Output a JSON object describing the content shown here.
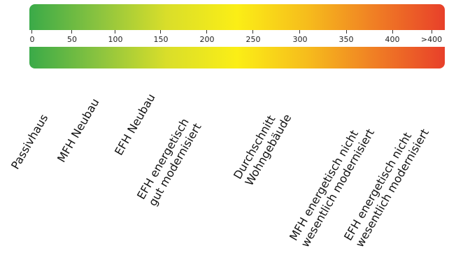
{
  "scale": {
    "ticks": [
      "0",
      "50",
      "100",
      "150",
      "200",
      "250",
      "300",
      "350",
      "400",
      ">400"
    ],
    "gradient_colors": [
      "#3aaa48",
      "#8cc43f",
      "#d9de2a",
      "#fbee16",
      "#f6bc1c",
      "#f07f24",
      "#e8402a"
    ]
  },
  "categories": [
    {
      "lines": [
        "Passivhaus"
      ]
    },
    {
      "lines": [
        "MFH Neubau"
      ]
    },
    {
      "lines": [
        "EFH Neubau"
      ]
    },
    {
      "lines": [
        "EFH energetisch",
        "gut modernisiert"
      ]
    },
    {
      "lines": [
        "Durchschnitt",
        "Wohngebäude"
      ]
    },
    {
      "lines": [
        "MFH energetisch nicht",
        "wesentlich modernisiert"
      ]
    },
    {
      "lines": [
        "EFH energetisch nicht",
        "wesentlich modernisiert"
      ]
    }
  ]
}
